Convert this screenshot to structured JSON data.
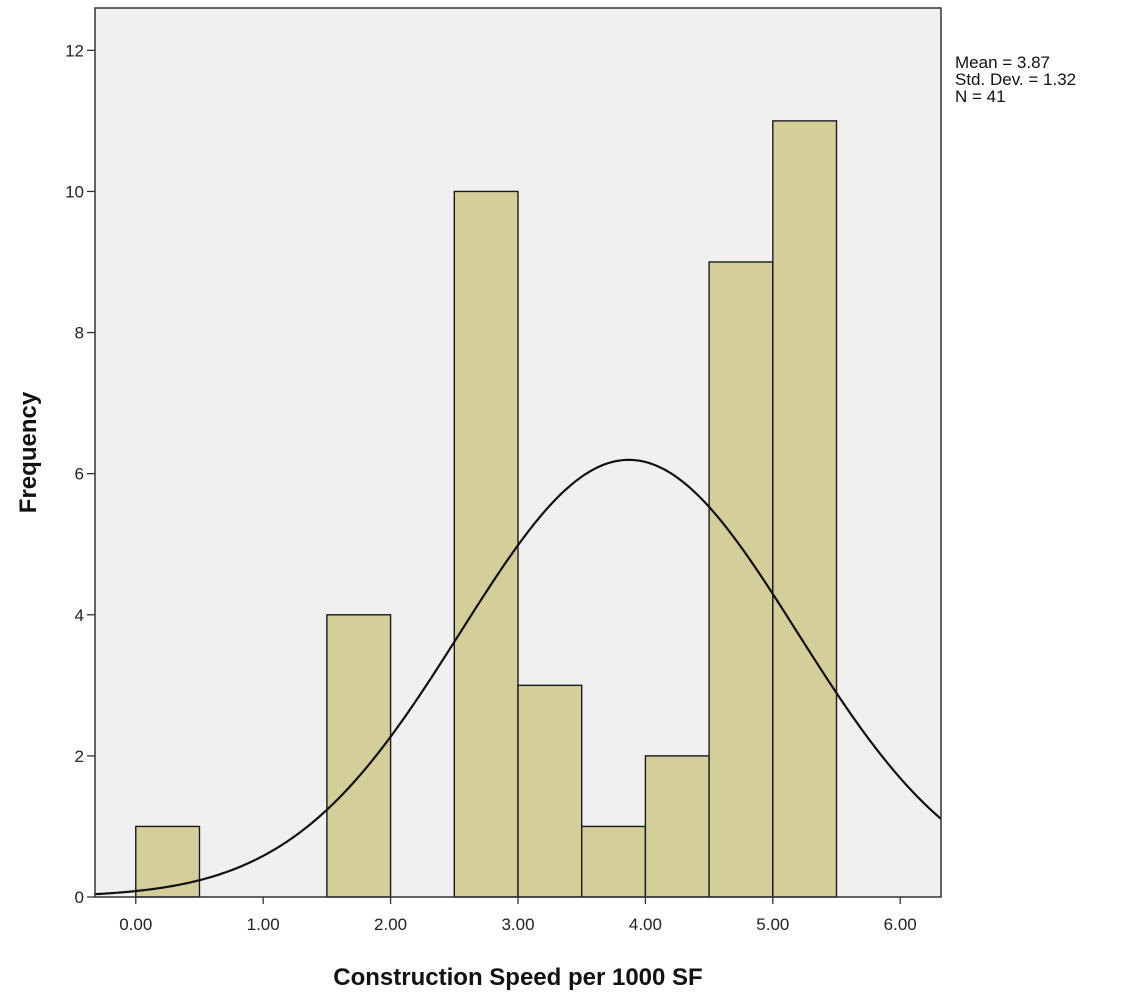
{
  "chart_data": {
    "type": "bar",
    "subtype": "histogram",
    "xlabel": "Construction Speed per 1000 SF",
    "ylabel": "Frequency",
    "xlim": [
      -0.32,
      6.32
    ],
    "ylim": [
      0,
      12.6
    ],
    "x_ticks": [
      0,
      1,
      2,
      3,
      4,
      5,
      6
    ],
    "x_tick_labels": [
      "0.00",
      "1.00",
      "2.00",
      "3.00",
      "4.00",
      "5.00",
      "6.00"
    ],
    "y_ticks": [
      0,
      2,
      4,
      6,
      8,
      10,
      12
    ],
    "y_tick_labels": [
      "0",
      "2",
      "4",
      "6",
      "8",
      "10",
      "12"
    ],
    "bins": [
      {
        "start": 0.0,
        "end": 0.5,
        "count": 1
      },
      {
        "start": 0.5,
        "end": 1.0,
        "count": 0
      },
      {
        "start": 1.0,
        "end": 1.5,
        "count": 0
      },
      {
        "start": 1.5,
        "end": 2.0,
        "count": 4
      },
      {
        "start": 2.0,
        "end": 2.5,
        "count": 0
      },
      {
        "start": 2.5,
        "end": 3.0,
        "count": 10
      },
      {
        "start": 3.0,
        "end": 3.5,
        "count": 3
      },
      {
        "start": 3.5,
        "end": 4.0,
        "count": 1
      },
      {
        "start": 4.0,
        "end": 4.5,
        "count": 2
      },
      {
        "start": 4.5,
        "end": 5.0,
        "count": 9
      },
      {
        "start": 5.0,
        "end": 5.5,
        "count": 11
      }
    ],
    "normal_curve": {
      "mean": 3.87,
      "std": 1.32,
      "n": 41,
      "bin_width": 0.5
    },
    "stats": [
      "Mean = 3.87",
      "Std. Dev. = 1.32",
      "N = 41"
    ],
    "legend_position": "top-right",
    "grid": false,
    "colors": {
      "bar_fill": "#d3ce9a",
      "bar_stroke": "#1a1a1a",
      "plot_background": "#f0f0f0",
      "curve": "#111111"
    }
  }
}
